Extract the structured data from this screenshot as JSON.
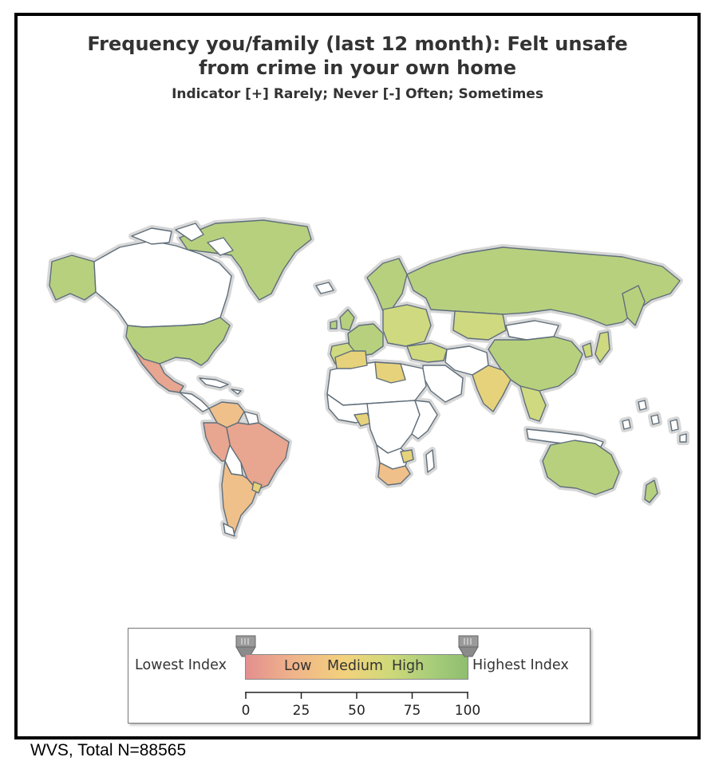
{
  "title_line1": "Frequency you/family (last 12 month): Felt unsafe",
  "title_line2": "from crime in your own home",
  "subtitle": "Indicator [+] Rarely; Never [-] Often; Sometimes",
  "legend": {
    "lowest_label": "Lowest Index",
    "highest_label": "Highest Index",
    "bar_labels": [
      "Low",
      "Medium",
      "High"
    ],
    "ticks": [
      "0",
      "25",
      "50",
      "75",
      "100"
    ],
    "colors": {
      "low": "#e38f8f",
      "medium": "#f2d27c",
      "high": "#8fbe6f"
    }
  },
  "footer": "WVS, Total N=88565",
  "map_colors": {
    "no_data": "#ffffff",
    "low": "#e8a58f",
    "low_medium": "#f0c08a",
    "medium": "#e6d27a",
    "medium_high": "#cfd97f",
    "high": "#b7d07e",
    "border": "#5f6e7a",
    "shadow": "#d7d7d7"
  }
}
